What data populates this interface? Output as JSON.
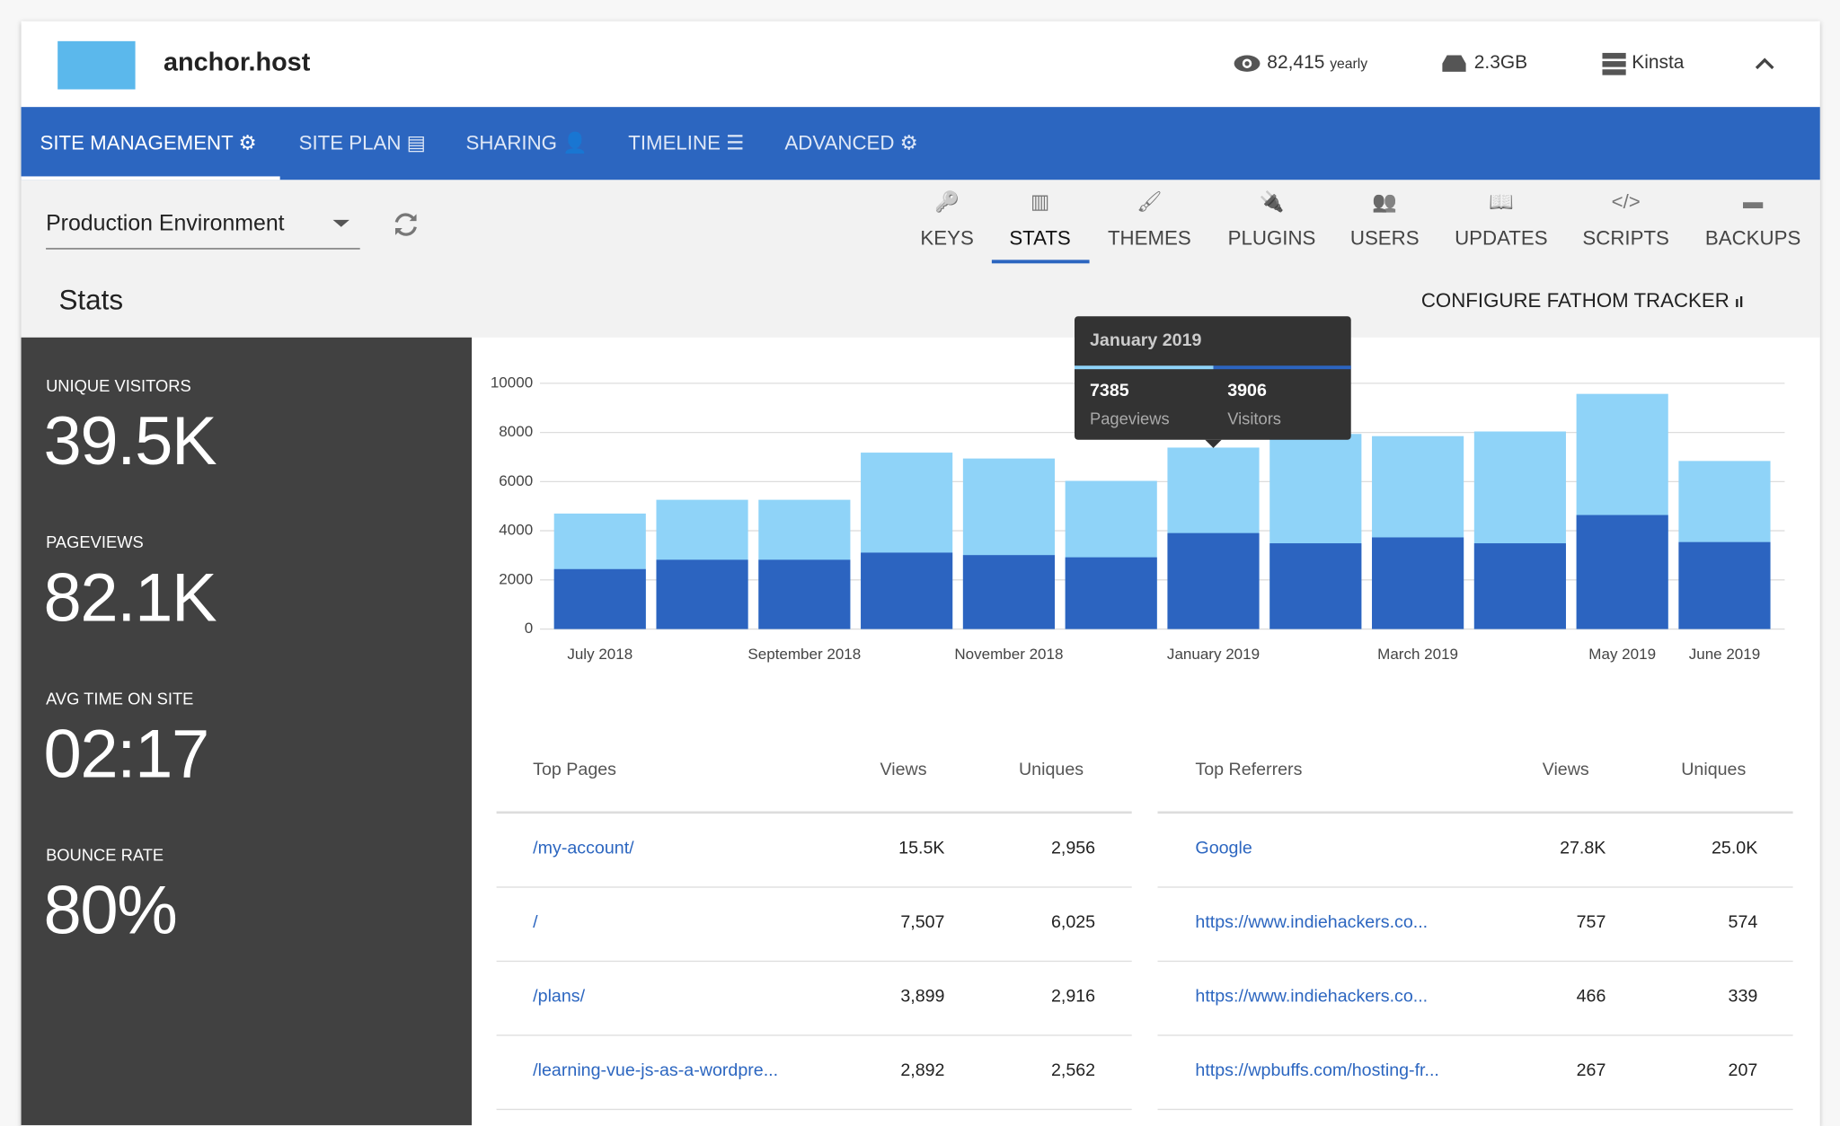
{
  "header": {
    "site": "anchor.host",
    "views": "82,415",
    "views_unit": "yearly",
    "storage": "2.3GB",
    "provider": "Kinsta"
  },
  "nav": [
    "SITE MANAGEMENT",
    "SITE PLAN",
    "SHARING",
    "TIMELINE",
    "ADVANCED"
  ],
  "environment": "Production Environment",
  "tools": [
    "KEYS",
    "STATS",
    "THEMES",
    "PLUGINS",
    "USERS",
    "UPDATES",
    "SCRIPTS",
    "BACKUPS"
  ],
  "section_title": "Stats",
  "configure": "CONFIGURE FATHOM TRACKER",
  "metrics": [
    {
      "label": "UNIQUE VISITORS",
      "value": "39.5K"
    },
    {
      "label": "PAGEVIEWS",
      "value": "82.1K"
    },
    {
      "label": "AVG TIME ON SITE",
      "value": "02:17"
    },
    {
      "label": "BOUNCE RATE",
      "value": "80%"
    }
  ],
  "chart_data": {
    "type": "bar",
    "categories": [
      "July 2018",
      null,
      "September 2018",
      null,
      "November 2018",
      null,
      "January 2019",
      null,
      "March 2019",
      null,
      "May 2019",
      "June 2019"
    ],
    "series": [
      {
        "name": "Pageviews",
        "color": "#8fd3f8",
        "values": [
          4700,
          5260,
          5260,
          7180,
          6940,
          6030,
          7385,
          7940,
          7850,
          8040,
          9570,
          6840
        ]
      },
      {
        "name": "Visitors",
        "color": "#2c64c0",
        "values": [
          2440,
          2820,
          2820,
          3110,
          3010,
          2920,
          3906,
          3490,
          3730,
          3490,
          4640,
          3540
        ]
      }
    ],
    "ylim": [
      0,
      10000
    ],
    "yticks": [
      0,
      2000,
      4000,
      6000,
      8000,
      10000
    ],
    "grid": true,
    "tooltip_index": 6
  },
  "tables": [
    {
      "headers": [
        "Top Pages",
        "Views",
        "Uniques"
      ],
      "rows": [
        [
          "/my-account/",
          "15.5K",
          "2,956"
        ],
        [
          "/",
          "7,507",
          "6,025"
        ],
        [
          "/plans/",
          "3,899",
          "2,916"
        ],
        [
          "/learning-vue-js-as-a-wordpre...",
          "2,892",
          "2,562"
        ]
      ]
    },
    {
      "headers": [
        "Top Referrers",
        "Views",
        "Uniques"
      ],
      "rows": [
        [
          "Google",
          "27.8K",
          "25.0K"
        ],
        [
          "https://www.indiehackers.co...",
          "757",
          "574"
        ],
        [
          "https://www.indiehackers.co...",
          "466",
          "339"
        ],
        [
          "https://wpbuffs.com/hosting-fr...",
          "267",
          "207"
        ]
      ]
    }
  ]
}
